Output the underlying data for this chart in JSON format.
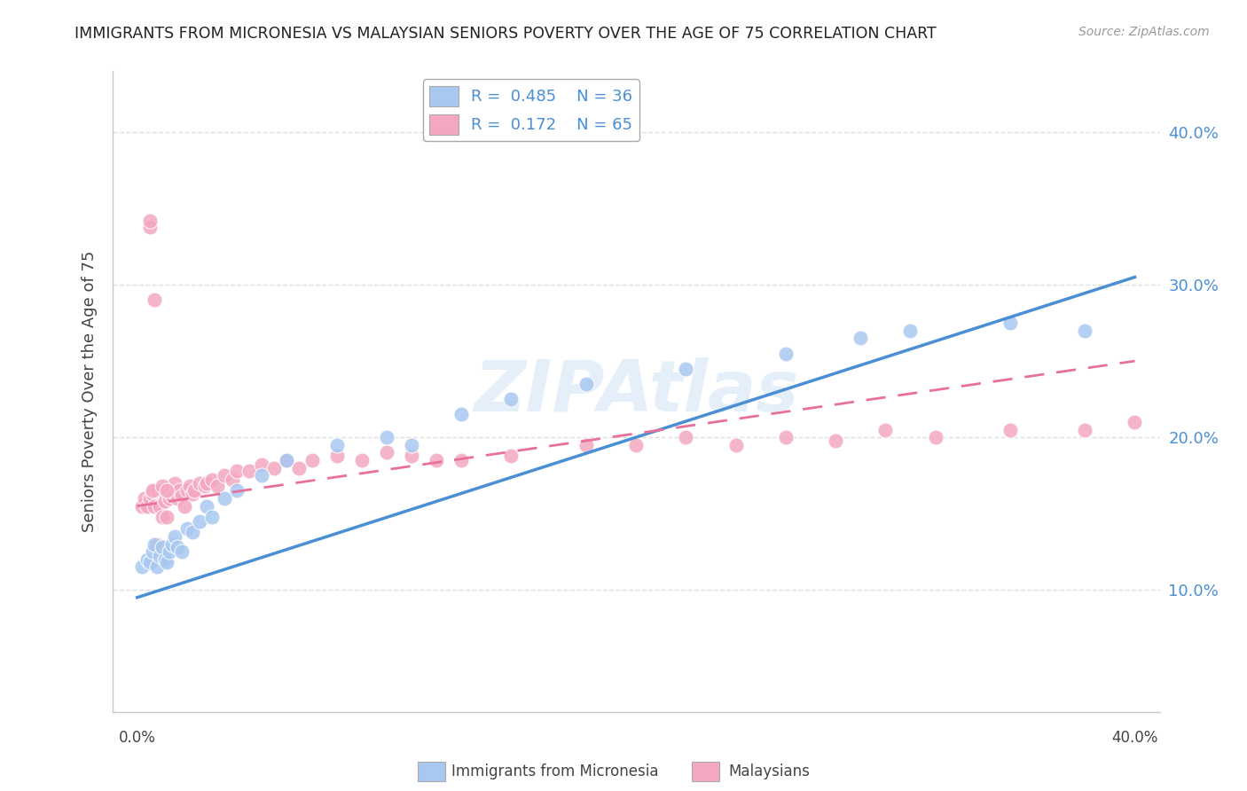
{
  "title": "IMMIGRANTS FROM MICRONESIA VS MALAYSIAN SENIORS POVERTY OVER THE AGE OF 75 CORRELATION CHART",
  "source": "Source: ZipAtlas.com",
  "ylabel": "Seniors Poverty Over the Age of 75",
  "xlim": [
    0.0,
    0.4
  ],
  "ylim": [
    0.02,
    0.44
  ],
  "ytick_vals": [
    0.1,
    0.2,
    0.3,
    0.4
  ],
  "ytick_labels": [
    "10.0%",
    "20.0%",
    "30.0%",
    "40.0%"
  ],
  "blue_color": "#a8c8f0",
  "pink_color": "#f4a8c0",
  "blue_line_color": "#4a8fd4",
  "pink_line_color": "#e8709a",
  "label_color": "#4a8fd4",
  "watermark": "ZIPAtlas",
  "background_color": "#ffffff",
  "grid_color": "#e0e0e0",
  "legend_r1": "R =  0.485    N = 36",
  "legend_r2": "R =  0.172    N = 65",
  "bottom_label1": "Immigrants from Micronesia",
  "bottom_label2": "Malaysians",
  "mic_x": [
    0.002,
    0.004,
    0.005,
    0.006,
    0.007,
    0.008,
    0.009,
    0.01,
    0.011,
    0.012,
    0.013,
    0.014,
    0.015,
    0.016,
    0.018,
    0.02,
    0.022,
    0.025,
    0.028,
    0.03,
    0.035,
    0.04,
    0.05,
    0.06,
    0.08,
    0.1,
    0.11,
    0.13,
    0.15,
    0.18,
    0.22,
    0.26,
    0.29,
    0.31,
    0.35,
    0.38
  ],
  "mic_y": [
    0.115,
    0.12,
    0.118,
    0.125,
    0.13,
    0.115,
    0.122,
    0.128,
    0.12,
    0.118,
    0.125,
    0.13,
    0.135,
    0.128,
    0.125,
    0.14,
    0.138,
    0.145,
    0.155,
    0.148,
    0.16,
    0.165,
    0.175,
    0.185,
    0.195,
    0.2,
    0.195,
    0.215,
    0.225,
    0.235,
    0.245,
    0.255,
    0.265,
    0.27,
    0.275,
    0.27
  ],
  "mal_x": [
    0.002,
    0.003,
    0.004,
    0.005,
    0.005,
    0.006,
    0.007,
    0.007,
    0.008,
    0.008,
    0.009,
    0.01,
    0.01,
    0.011,
    0.012,
    0.012,
    0.013,
    0.014,
    0.015,
    0.015,
    0.016,
    0.017,
    0.018,
    0.019,
    0.02,
    0.021,
    0.022,
    0.023,
    0.025,
    0.027,
    0.028,
    0.03,
    0.032,
    0.035,
    0.038,
    0.04,
    0.045,
    0.05,
    0.055,
    0.06,
    0.065,
    0.07,
    0.08,
    0.09,
    0.1,
    0.11,
    0.12,
    0.13,
    0.15,
    0.18,
    0.2,
    0.22,
    0.24,
    0.26,
    0.28,
    0.3,
    0.32,
    0.35,
    0.38,
    0.4,
    0.005,
    0.006,
    0.007,
    0.01,
    0.012
  ],
  "mal_y": [
    0.155,
    0.16,
    0.155,
    0.338,
    0.16,
    0.163,
    0.155,
    0.165,
    0.13,
    0.165,
    0.155,
    0.148,
    0.165,
    0.158,
    0.148,
    0.165,
    0.16,
    0.162,
    0.165,
    0.17,
    0.16,
    0.165,
    0.162,
    0.155,
    0.165,
    0.168,
    0.163,
    0.165,
    0.17,
    0.168,
    0.17,
    0.172,
    0.168,
    0.175,
    0.172,
    0.178,
    0.178,
    0.182,
    0.18,
    0.185,
    0.18,
    0.185,
    0.188,
    0.185,
    0.19,
    0.188,
    0.185,
    0.185,
    0.188,
    0.195,
    0.195,
    0.2,
    0.195,
    0.2,
    0.198,
    0.205,
    0.2,
    0.205,
    0.205,
    0.21,
    0.342,
    0.165,
    0.29,
    0.168,
    0.165
  ]
}
